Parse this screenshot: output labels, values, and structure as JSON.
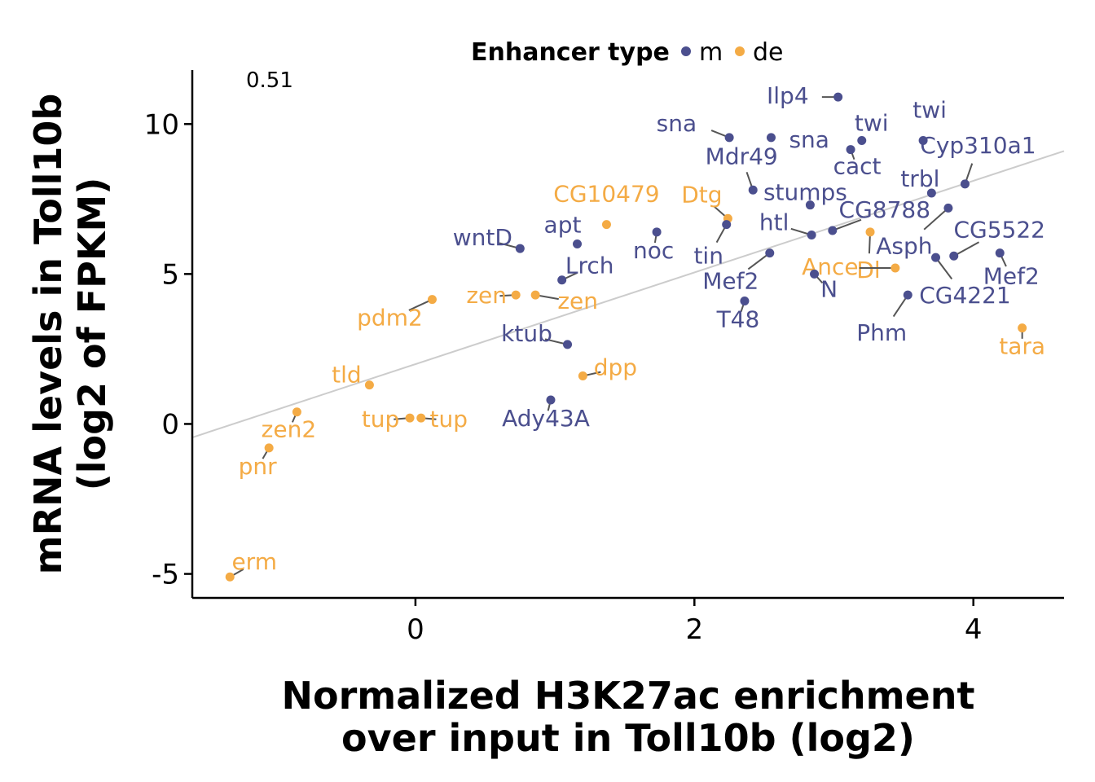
{
  "chart_data": {
    "type": "scatter",
    "title": "",
    "xlabel": [
      "Normalized H3K27ac enrichment",
      "over input in Toll10b (log2)"
    ],
    "ylabel": [
      "mRNA levels in Toll10b",
      "(log2 of FPKM)"
    ],
    "xlim": [
      -1.6,
      4.65
    ],
    "ylim": [
      -5.8,
      11.8
    ],
    "xticks": [
      0,
      2,
      4
    ],
    "yticks": [
      -5,
      0,
      5,
      10
    ],
    "xtick_labels": [
      "0",
      "2",
      "4"
    ],
    "ytick_labels": [
      "-5",
      "0",
      "5",
      "10"
    ],
    "grid": false,
    "annotation": "0.51",
    "legend": {
      "title": "Enhancer type",
      "position": "top",
      "entries": [
        {
          "key": "m",
          "label": "m",
          "color": "#4b4f8e"
        },
        {
          "key": "de",
          "label": "de",
          "color": "#f4ab45"
        }
      ]
    },
    "regression_line": {
      "color": "#cccccc",
      "x": [
        -1.6,
        4.65
      ],
      "y": [
        -0.45,
        9.1
      ]
    },
    "points": [
      {
        "label": "Ilp4",
        "x": 3.03,
        "y": 10.9,
        "type": "m"
      },
      {
        "label": "sna",
        "x": 2.25,
        "y": 9.55,
        "type": "m"
      },
      {
        "label": "sna",
        "x": 2.55,
        "y": 9.55,
        "type": "m"
      },
      {
        "label": "twi",
        "x": 3.2,
        "y": 9.45,
        "type": "m"
      },
      {
        "label": "twi",
        "x": 3.64,
        "y": 9.45,
        "type": "m"
      },
      {
        "label": "cact",
        "x": 3.12,
        "y": 9.15,
        "type": "m"
      },
      {
        "label": "Cyp310a1",
        "x": 3.94,
        "y": 8.0,
        "type": "m"
      },
      {
        "label": "Mdr49",
        "x": 2.42,
        "y": 7.8,
        "type": "m"
      },
      {
        "label": "trbl",
        "x": 3.7,
        "y": 7.7,
        "type": "m"
      },
      {
        "label": "stumps",
        "x": 2.83,
        "y": 7.3,
        "type": "m"
      },
      {
        "label": "Asph",
        "x": 3.82,
        "y": 7.2,
        "type": "m"
      },
      {
        "label": "CG10479",
        "x": 1.37,
        "y": 6.65,
        "type": "de"
      },
      {
        "label": "Dtg",
        "x": 2.24,
        "y": 6.85,
        "type": "de"
      },
      {
        "label": "tin",
        "x": 2.23,
        "y": 6.65,
        "type": "m"
      },
      {
        "label": "CG8788",
        "x": 2.99,
        "y": 6.45,
        "type": "m"
      },
      {
        "label": "htl",
        "x": 2.84,
        "y": 6.3,
        "type": "m"
      },
      {
        "label": "Dl",
        "x": 3.26,
        "y": 6.4,
        "type": "de"
      },
      {
        "label": "noc",
        "x": 1.73,
        "y": 6.4,
        "type": "m"
      },
      {
        "label": "apt",
        "x": 1.16,
        "y": 6.0,
        "type": "m"
      },
      {
        "label": "wntD",
        "x": 0.75,
        "y": 5.85,
        "type": "m"
      },
      {
        "label": "CG5522",
        "x": 3.86,
        "y": 5.6,
        "type": "m"
      },
      {
        "label": "Mef2",
        "x": 4.19,
        "y": 5.7,
        "type": "m"
      },
      {
        "label": "CG4221",
        "x": 3.73,
        "y": 5.55,
        "type": "m"
      },
      {
        "label": "Mef2",
        "x": 2.54,
        "y": 5.7,
        "type": "m"
      },
      {
        "label": "Ance",
        "x": 3.44,
        "y": 5.2,
        "type": "de"
      },
      {
        "label": "N",
        "x": 2.86,
        "y": 5.0,
        "type": "m"
      },
      {
        "label": "Lrch",
        "x": 1.05,
        "y": 4.8,
        "type": "m"
      },
      {
        "label": "zen",
        "x": 0.72,
        "y": 4.3,
        "type": "de"
      },
      {
        "label": "zen",
        "x": 0.86,
        "y": 4.3,
        "type": "de"
      },
      {
        "label": "Phm",
        "x": 3.53,
        "y": 4.3,
        "type": "m"
      },
      {
        "label": "pdm2",
        "x": 0.12,
        "y": 4.15,
        "type": "de"
      },
      {
        "label": "T48",
        "x": 2.36,
        "y": 4.1,
        "type": "m"
      },
      {
        "label": "tara",
        "x": 4.35,
        "y": 3.2,
        "type": "de"
      },
      {
        "label": "ktub",
        "x": 1.09,
        "y": 2.65,
        "type": "m"
      },
      {
        "label": "dpp",
        "x": 1.2,
        "y": 1.6,
        "type": "de"
      },
      {
        "label": "tld",
        "x": -0.33,
        "y": 1.3,
        "type": "de"
      },
      {
        "label": "Ady43A",
        "x": 0.97,
        "y": 0.8,
        "type": "m"
      },
      {
        "label": "zen2",
        "x": -0.85,
        "y": 0.4,
        "type": "de"
      },
      {
        "label": "tup",
        "x": -0.04,
        "y": 0.2,
        "type": "de"
      },
      {
        "label": "tup",
        "x": 0.04,
        "y": 0.2,
        "type": "de"
      },
      {
        "label": "pnr",
        "x": -1.05,
        "y": -0.8,
        "type": "de"
      },
      {
        "label": "erm",
        "x": -1.33,
        "y": -5.1,
        "type": "de"
      }
    ]
  }
}
